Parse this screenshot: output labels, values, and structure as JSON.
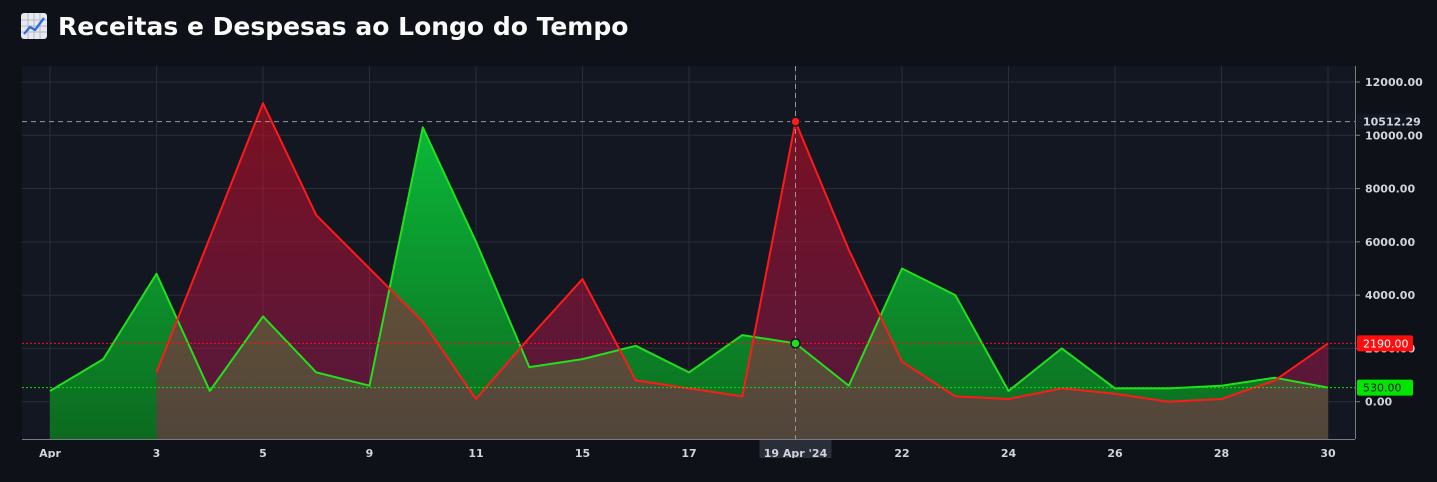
{
  "page": {
    "title": "Receitas e Despesas ao Longo do Tempo",
    "title_icon": "chart-increasing-icon"
  },
  "chart_data": {
    "type": "area",
    "x_tick_labels": [
      "Apr",
      "3",
      "5",
      "9",
      "11",
      "15",
      "17",
      "19 Apr '24",
      "22",
      "24",
      "26",
      "28",
      "30"
    ],
    "x_tick_days": [
      1,
      3,
      5,
      7,
      9,
      11,
      13,
      15,
      17,
      19,
      21,
      23,
      25
    ],
    "y_tick_labels": [
      "0.00",
      "2000.00",
      "4000.00",
      "6000.00",
      "8000.00",
      "10000.00",
      "12000.00"
    ],
    "ylim": [
      -1400,
      12600
    ],
    "grid": true,
    "series": [
      {
        "color": "#21e01c",
        "x": [
          1,
          2,
          3,
          4,
          5,
          6,
          7,
          8,
          9,
          10,
          11,
          12,
          13,
          14,
          15,
          16,
          17,
          18,
          19,
          20,
          21,
          22,
          23,
          24,
          25
        ],
        "values": [
          400,
          1600,
          4800,
          400,
          3200,
          1100,
          600,
          10300,
          6000,
          1300,
          1600,
          2100,
          1100,
          2500,
          2190,
          600,
          5000,
          4000,
          400,
          2000,
          500,
          500,
          600,
          900,
          530
        ]
      },
      {
        "color": "#ff1a1a",
        "x": [
          3,
          5,
          6,
          7,
          8,
          9,
          10,
          11,
          12,
          13,
          14,
          15,
          16,
          17,
          18,
          19,
          20,
          21,
          22,
          23,
          24,
          25
        ],
        "values": [
          1100,
          11200,
          7000,
          5000,
          3000,
          100,
          2400,
          4600,
          800,
          500,
          200,
          10512.29,
          5700,
          1500,
          200,
          100,
          500,
          300,
          0,
          100,
          800,
          2190
        ]
      }
    ],
    "crosshair": {
      "x_label": "19 Apr '24",
      "y_label": "10512.29",
      "y_value": 10512.29
    },
    "last_value_labels": [
      {
        "label": "2190.00",
        "value": 2190,
        "color": "#ff0d0d"
      },
      {
        "label": "530.00",
        "value": 530,
        "color": "#00e600"
      }
    ]
  }
}
